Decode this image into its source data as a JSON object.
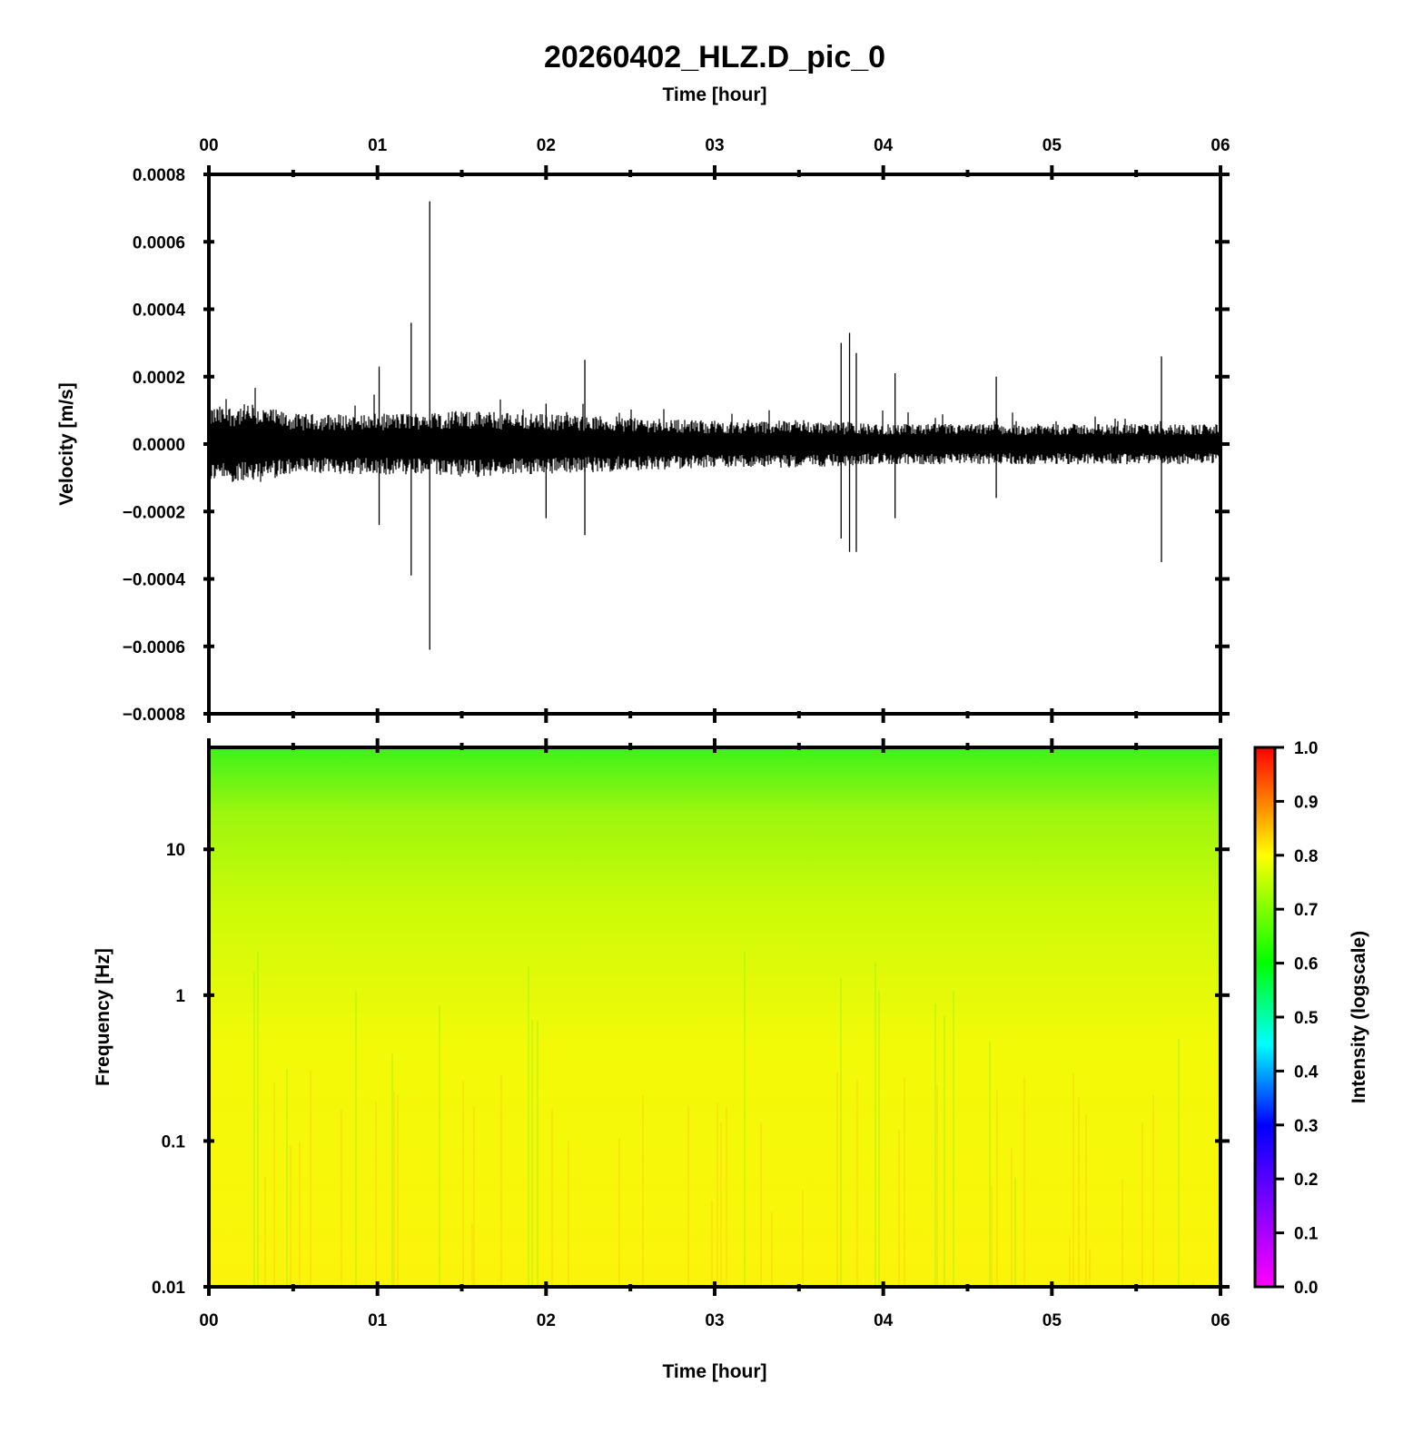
{
  "title": "20260402_HLZ.D_pic_0",
  "chart_data": [
    {
      "type": "line",
      "panel": "seismogram",
      "xlabel": "Time [hour]",
      "ylabel": "Velocity [m/s]",
      "xlim": [
        0,
        6
      ],
      "ylim": [
        -0.0008,
        0.0008
      ],
      "x_ticks": [
        "00",
        "01",
        "02",
        "03",
        "04",
        "05",
        "06"
      ],
      "y_ticks": [
        "−0.0008",
        "−0.0006",
        "−0.0004",
        "−0.0002",
        "0.0000",
        "0.0002",
        "0.0004",
        "0.0006",
        "0.0008"
      ],
      "background_envelope": {
        "x_hours": [
          0,
          0.25,
          0.5,
          1,
          1.5,
          2,
          2.5,
          3,
          3.5,
          4,
          4.5,
          5,
          5.5,
          6
        ],
        "amplitude": [
          0.00011,
          0.00012,
          9e-05,
          9e-05,
          0.0001,
          9e-05,
          8e-05,
          7e-05,
          7e-05,
          6e-05,
          6e-05,
          6e-05,
          6e-05,
          6e-05
        ]
      },
      "spikes": [
        {
          "x": 1.2,
          "y_max": 0.00036,
          "y_min": -0.00039
        },
        {
          "x": 1.31,
          "y_max": 0.00072,
          "y_min": -0.00061
        },
        {
          "x": 1.01,
          "y_max": 0.00023,
          "y_min": -0.00024
        },
        {
          "x": 2.0,
          "y_max": 0.00012,
          "y_min": -0.00022
        },
        {
          "x": 2.23,
          "y_max": 0.00025,
          "y_min": -0.00027
        },
        {
          "x": 3.75,
          "y_max": 0.0003,
          "y_min": -0.00028
        },
        {
          "x": 3.8,
          "y_max": 0.00033,
          "y_min": -0.00032
        },
        {
          "x": 3.84,
          "y_max": 0.00027,
          "y_min": -0.00032
        },
        {
          "x": 4.07,
          "y_max": 0.00021,
          "y_min": -0.00022
        },
        {
          "x": 4.67,
          "y_max": 0.0002,
          "y_min": -0.00016
        },
        {
          "x": 5.65,
          "y_max": 0.00026,
          "y_min": -0.00035
        }
      ]
    },
    {
      "type": "heatmap",
      "panel": "spectrogram",
      "xlabel": "Time [hour]",
      "ylabel": "Frequency [Hz]",
      "xlim": [
        0,
        6
      ],
      "ylim": [
        0.01,
        50
      ],
      "y_scale": "log",
      "x_ticks": [
        "00",
        "01",
        "02",
        "03",
        "04",
        "05",
        "06"
      ],
      "y_ticks": [
        {
          "value": 0.01,
          "label": "0.01"
        },
        {
          "value": 0.1,
          "label": "0.1"
        },
        {
          "value": 1,
          "label": "1"
        },
        {
          "value": 10,
          "label": "10"
        }
      ],
      "intensity_profile": {
        "freq_hz": [
          0.01,
          0.1,
          1,
          3,
          10,
          25,
          50
        ],
        "intensity": [
          0.8,
          0.8,
          0.78,
          0.75,
          0.7,
          0.66,
          0.62
        ]
      },
      "colorbar": {
        "label": "Intensity (logscale)",
        "range": [
          0,
          1
        ],
        "ticks": [
          "0.0",
          "0.1",
          "0.2",
          "0.3",
          "0.4",
          "0.5",
          "0.6",
          "0.7",
          "0.8",
          "0.9",
          "1.0"
        ],
        "colors": [
          "#ff00ff",
          "#0000ff",
          "#00ffff",
          "#00ff00",
          "#ffff00",
          "#ff0000"
        ]
      }
    }
  ]
}
